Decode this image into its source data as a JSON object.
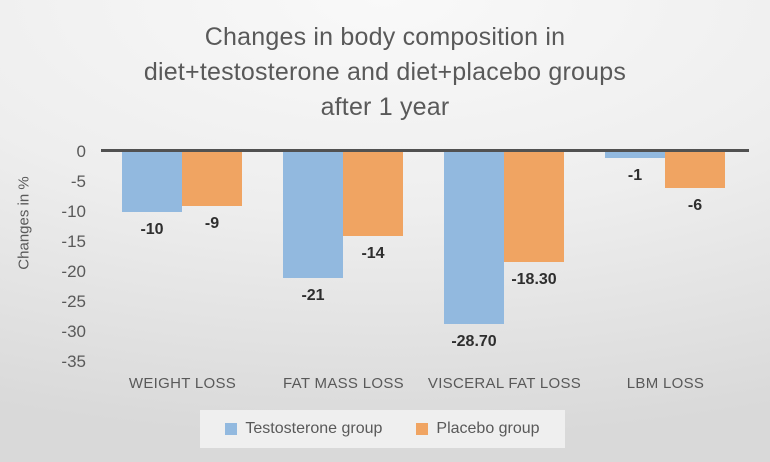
{
  "chart_data": {
    "type": "bar",
    "title": "Changes in body composition in diet+testosterone and diet+placebo groups after 1 year",
    "title_lines": [
      "Changes in body composition in",
      "diet+testosterone and diet+placebo groups",
      "after 1 year"
    ],
    "ylabel": "Changes in %",
    "xlabel": "",
    "categories": [
      "WEIGHT LOSS",
      "FAT MASS LOSS",
      "VISCERAL FAT LOSS",
      "LBM LOSS"
    ],
    "series": [
      {
        "name": "Testosterone group",
        "color": "#92b9df",
        "values": [
          -10,
          -21,
          -28.7,
          -1
        ],
        "value_labels": [
          "-10",
          "-21",
          "-28.70",
          "-1"
        ]
      },
      {
        "name": "Placebo group",
        "color": "#f0a462",
        "values": [
          -9,
          -14,
          -18.3,
          -6
        ],
        "value_labels": [
          "-9",
          "-14",
          "-18.30",
          "-6"
        ]
      }
    ],
    "y_ticks": [
      0,
      -5,
      -10,
      -15,
      -20,
      -25,
      -30,
      -35
    ],
    "ylim": [
      -35,
      0
    ],
    "grid": false,
    "legend_position": "bottom",
    "colors": {
      "axis_line": "#515151",
      "axis_text": "#595959",
      "title_text": "#595959",
      "value_label_text": "#2e2e2e",
      "legend_background": "#efefef"
    }
  }
}
